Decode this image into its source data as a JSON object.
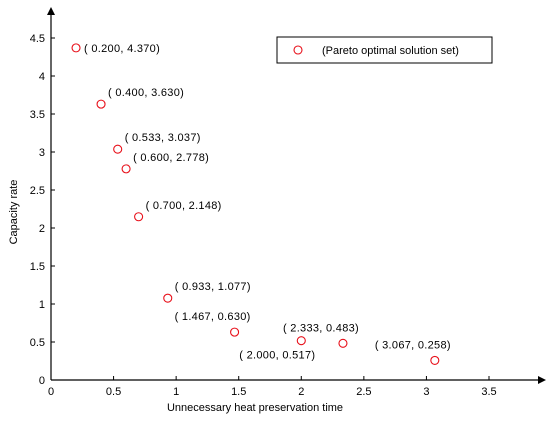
{
  "chart_data": {
    "type": "scatter",
    "xlabel": "Unnecessary heat preservation time",
    "ylabel": "Capacity rate",
    "xlim": [
      0,
      3.5
    ],
    "ylim": [
      0,
      4.5
    ],
    "xticks": [
      "0",
      "0.5",
      "1",
      "1.5",
      "2",
      "2.5",
      "3",
      "3.5"
    ],
    "yticks": [
      "0",
      "0.5",
      "1",
      "1.5",
      "2",
      "2.5",
      "3",
      "3.5",
      "4",
      "4.5"
    ],
    "grid": false,
    "legend_position": "top-right",
    "series": [
      {
        "name": "(Pareto optimal solution set)",
        "marker": "circle",
        "color": "#e8101a",
        "points": [
          {
            "x": 0.2,
            "y": 4.37,
            "label": "( 0.200, 4.370)",
            "label_side": "right"
          },
          {
            "x": 0.4,
            "y": 3.63,
            "label": "( 0.400, 3.630)",
            "label_side": "up-right"
          },
          {
            "x": 0.533,
            "y": 3.037,
            "label": "( 0.533, 3.037)",
            "label_side": "up-right"
          },
          {
            "x": 0.6,
            "y": 2.778,
            "label": "( 0.600, 2.778)",
            "label_side": "up-right"
          },
          {
            "x": 0.7,
            "y": 2.148,
            "label": "( 0.700, 2.148)",
            "label_side": "up-right"
          },
          {
            "x": 0.933,
            "y": 1.077,
            "label": "( 0.933, 1.077)",
            "label_side": "up-right"
          },
          {
            "x": 1.467,
            "y": 0.63,
            "label": "( 1.467, 0.630)",
            "label_side": "up-left"
          },
          {
            "x": 2.0,
            "y": 0.517,
            "label": "( 2.000, 0.517)",
            "label_side": "down-left"
          },
          {
            "x": 2.333,
            "y": 0.483,
            "label": "( 2.333, 0.483)",
            "label_side": "up-left"
          },
          {
            "x": 3.067,
            "y": 0.258,
            "label": "( 3.067, 0.258)",
            "label_side": "up-left"
          }
        ]
      }
    ]
  }
}
